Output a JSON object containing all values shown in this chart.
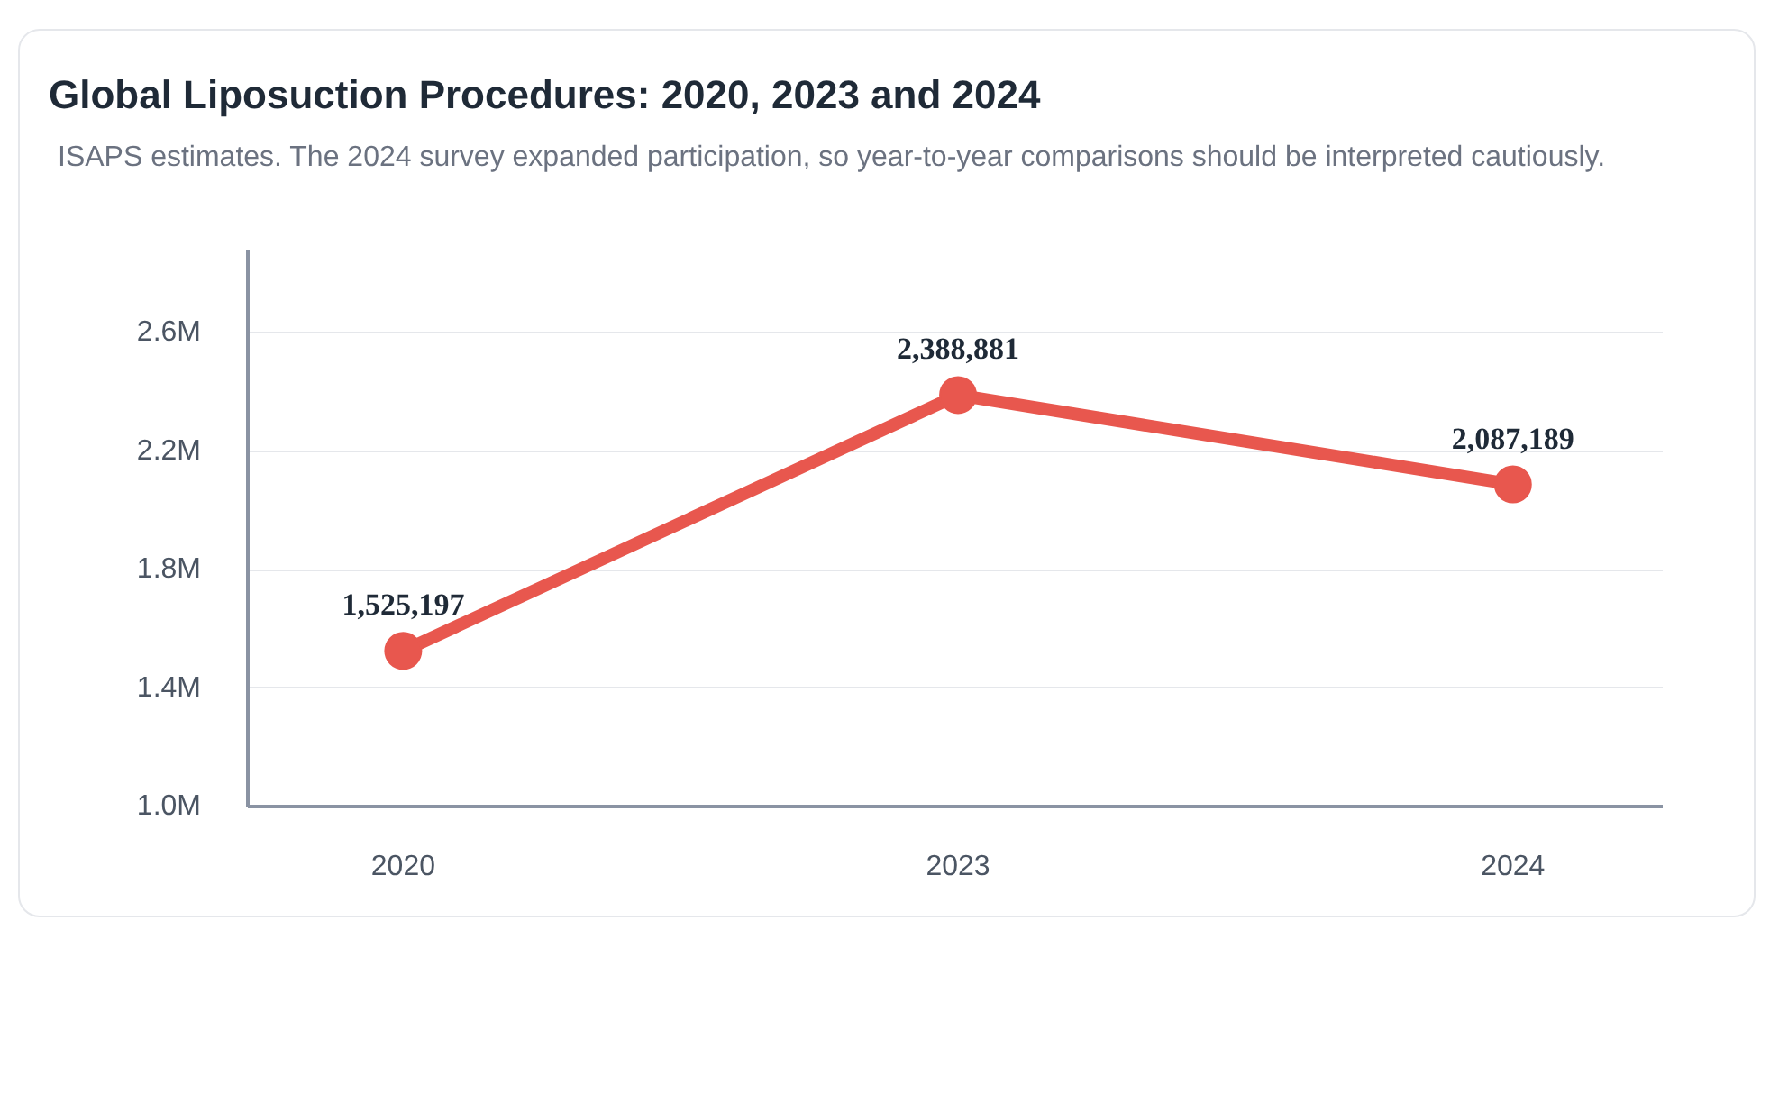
{
  "chart_data": {
    "type": "line",
    "title": "Global Liposuction Procedures: 2020, 2023 and 2024",
    "subtitle": "ISAPS estimates. The 2024 survey expanded participation, so year-to-year comparisons should be interpreted cautiously.",
    "categories": [
      "2020",
      "2023",
      "2024"
    ],
    "series": [
      {
        "color": "#e8574e",
        "values": [
          1525197,
          2388881,
          2087189
        ]
      }
    ],
    "ylim": [
      1000000,
      2880000
    ],
    "yticks": [
      {
        "value": 1000000,
        "label": "1.0M"
      },
      {
        "value": 1400000,
        "label": "1.4M"
      },
      {
        "value": 1800000,
        "label": "1.8M"
      },
      {
        "value": 2200000,
        "label": "2.2M"
      },
      {
        "value": 2600000,
        "label": "2.6M"
      }
    ],
    "value_labels": [
      "1,525,197",
      "2,388,881",
      "2,087,189"
    ],
    "grid": "y",
    "marker": "circle",
    "line_style": "solid"
  }
}
